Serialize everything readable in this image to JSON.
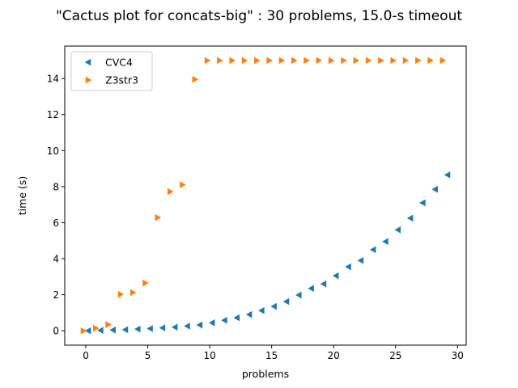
{
  "chart_data": {
    "type": "scatter",
    "title": "\"Cactus plot for concats-big\" : 30 problems, 15.0-s timeout",
    "xlabel": "problems",
    "ylabel": "time (s)",
    "xlim": [
      -1.7,
      30.7
    ],
    "ylim": [
      -0.8,
      15.8
    ],
    "xticks": [
      0,
      5,
      10,
      15,
      20,
      25,
      30
    ],
    "yticks": [
      0,
      2,
      4,
      6,
      8,
      10,
      12,
      14
    ],
    "legend_position": "top-left",
    "grid": false,
    "series": [
      {
        "name": "CVC4",
        "marker": "triangle-left",
        "color": "#1f77b4",
        "x": [
          0.2,
          1.2,
          2.2,
          3.2,
          4.2,
          5.2,
          6.2,
          7.2,
          8.2,
          9.2,
          10.2,
          11.2,
          12.2,
          13.2,
          14.2,
          15.2,
          16.2,
          17.2,
          18.2,
          19.2,
          20.2,
          21.2,
          22.2,
          23.2,
          24.2,
          25.2,
          26.2,
          27.2,
          28.2,
          29.2
        ],
        "y": [
          0.0,
          0.02,
          0.04,
          0.06,
          0.09,
          0.12,
          0.16,
          0.2,
          0.26,
          0.32,
          0.44,
          0.58,
          0.72,
          0.9,
          1.12,
          1.35,
          1.62,
          1.98,
          2.35,
          2.6,
          3.05,
          3.55,
          3.9,
          4.5,
          4.95,
          5.6,
          6.25,
          7.1,
          7.85,
          8.65
        ]
      },
      {
        "name": "Z3str3",
        "marker": "triangle-right",
        "color": "#ff7f0e",
        "x": [
          -0.2,
          0.8,
          1.8,
          2.8,
          3.8,
          4.8,
          5.8,
          6.8,
          7.8,
          8.8,
          9.8,
          10.8,
          11.8,
          12.8,
          13.8,
          14.8,
          15.8,
          16.8,
          17.8,
          18.8,
          19.8,
          20.8,
          21.8,
          22.8,
          23.8,
          24.8,
          25.8,
          26.8,
          27.8,
          28.8
        ],
        "y": [
          0.0,
          0.14,
          0.34,
          2.02,
          2.12,
          2.65,
          6.28,
          7.72,
          8.1,
          13.95,
          15,
          15,
          15,
          15,
          15,
          15,
          15,
          15,
          15,
          15,
          15,
          15,
          15,
          15,
          15,
          15,
          15,
          15,
          15,
          15
        ]
      }
    ]
  }
}
